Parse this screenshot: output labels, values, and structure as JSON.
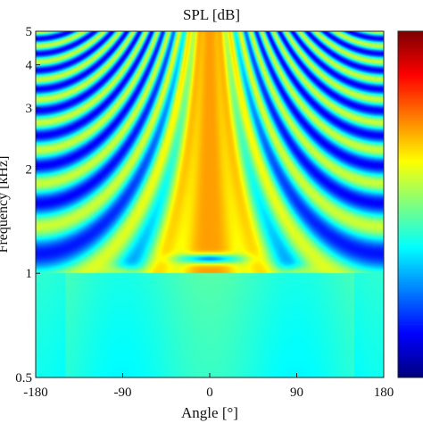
{
  "chart_data": {
    "type": "heatmap",
    "title": "SPL [dB]",
    "xlabel": "Angle [°]",
    "ylabel": "Frequency [kHz]",
    "xlim": [
      -180,
      180
    ],
    "ylim": [
      0.5,
      5
    ],
    "y_scale": "log",
    "x_ticks": [
      -180,
      -90,
      0,
      90,
      180
    ],
    "x_tick_labels": [
      "-180",
      "-90",
      "0",
      "90",
      "180"
    ],
    "y_ticks": [
      0.5,
      1,
      2,
      3,
      4,
      5
    ],
    "y_tick_labels": [
      "0.5",
      "1",
      "2",
      "3",
      "4",
      "5"
    ],
    "colorbar": {
      "colormap": "jet",
      "ticks": [],
      "tick_labels": []
    },
    "features": {
      "main_lobe_center_deg": 0,
      "transition_frequency_khz": 1,
      "hot_spot_angles_deg": [
        -90,
        90
      ],
      "notch_frequency_khz": 1.1
    },
    "grid": false
  }
}
